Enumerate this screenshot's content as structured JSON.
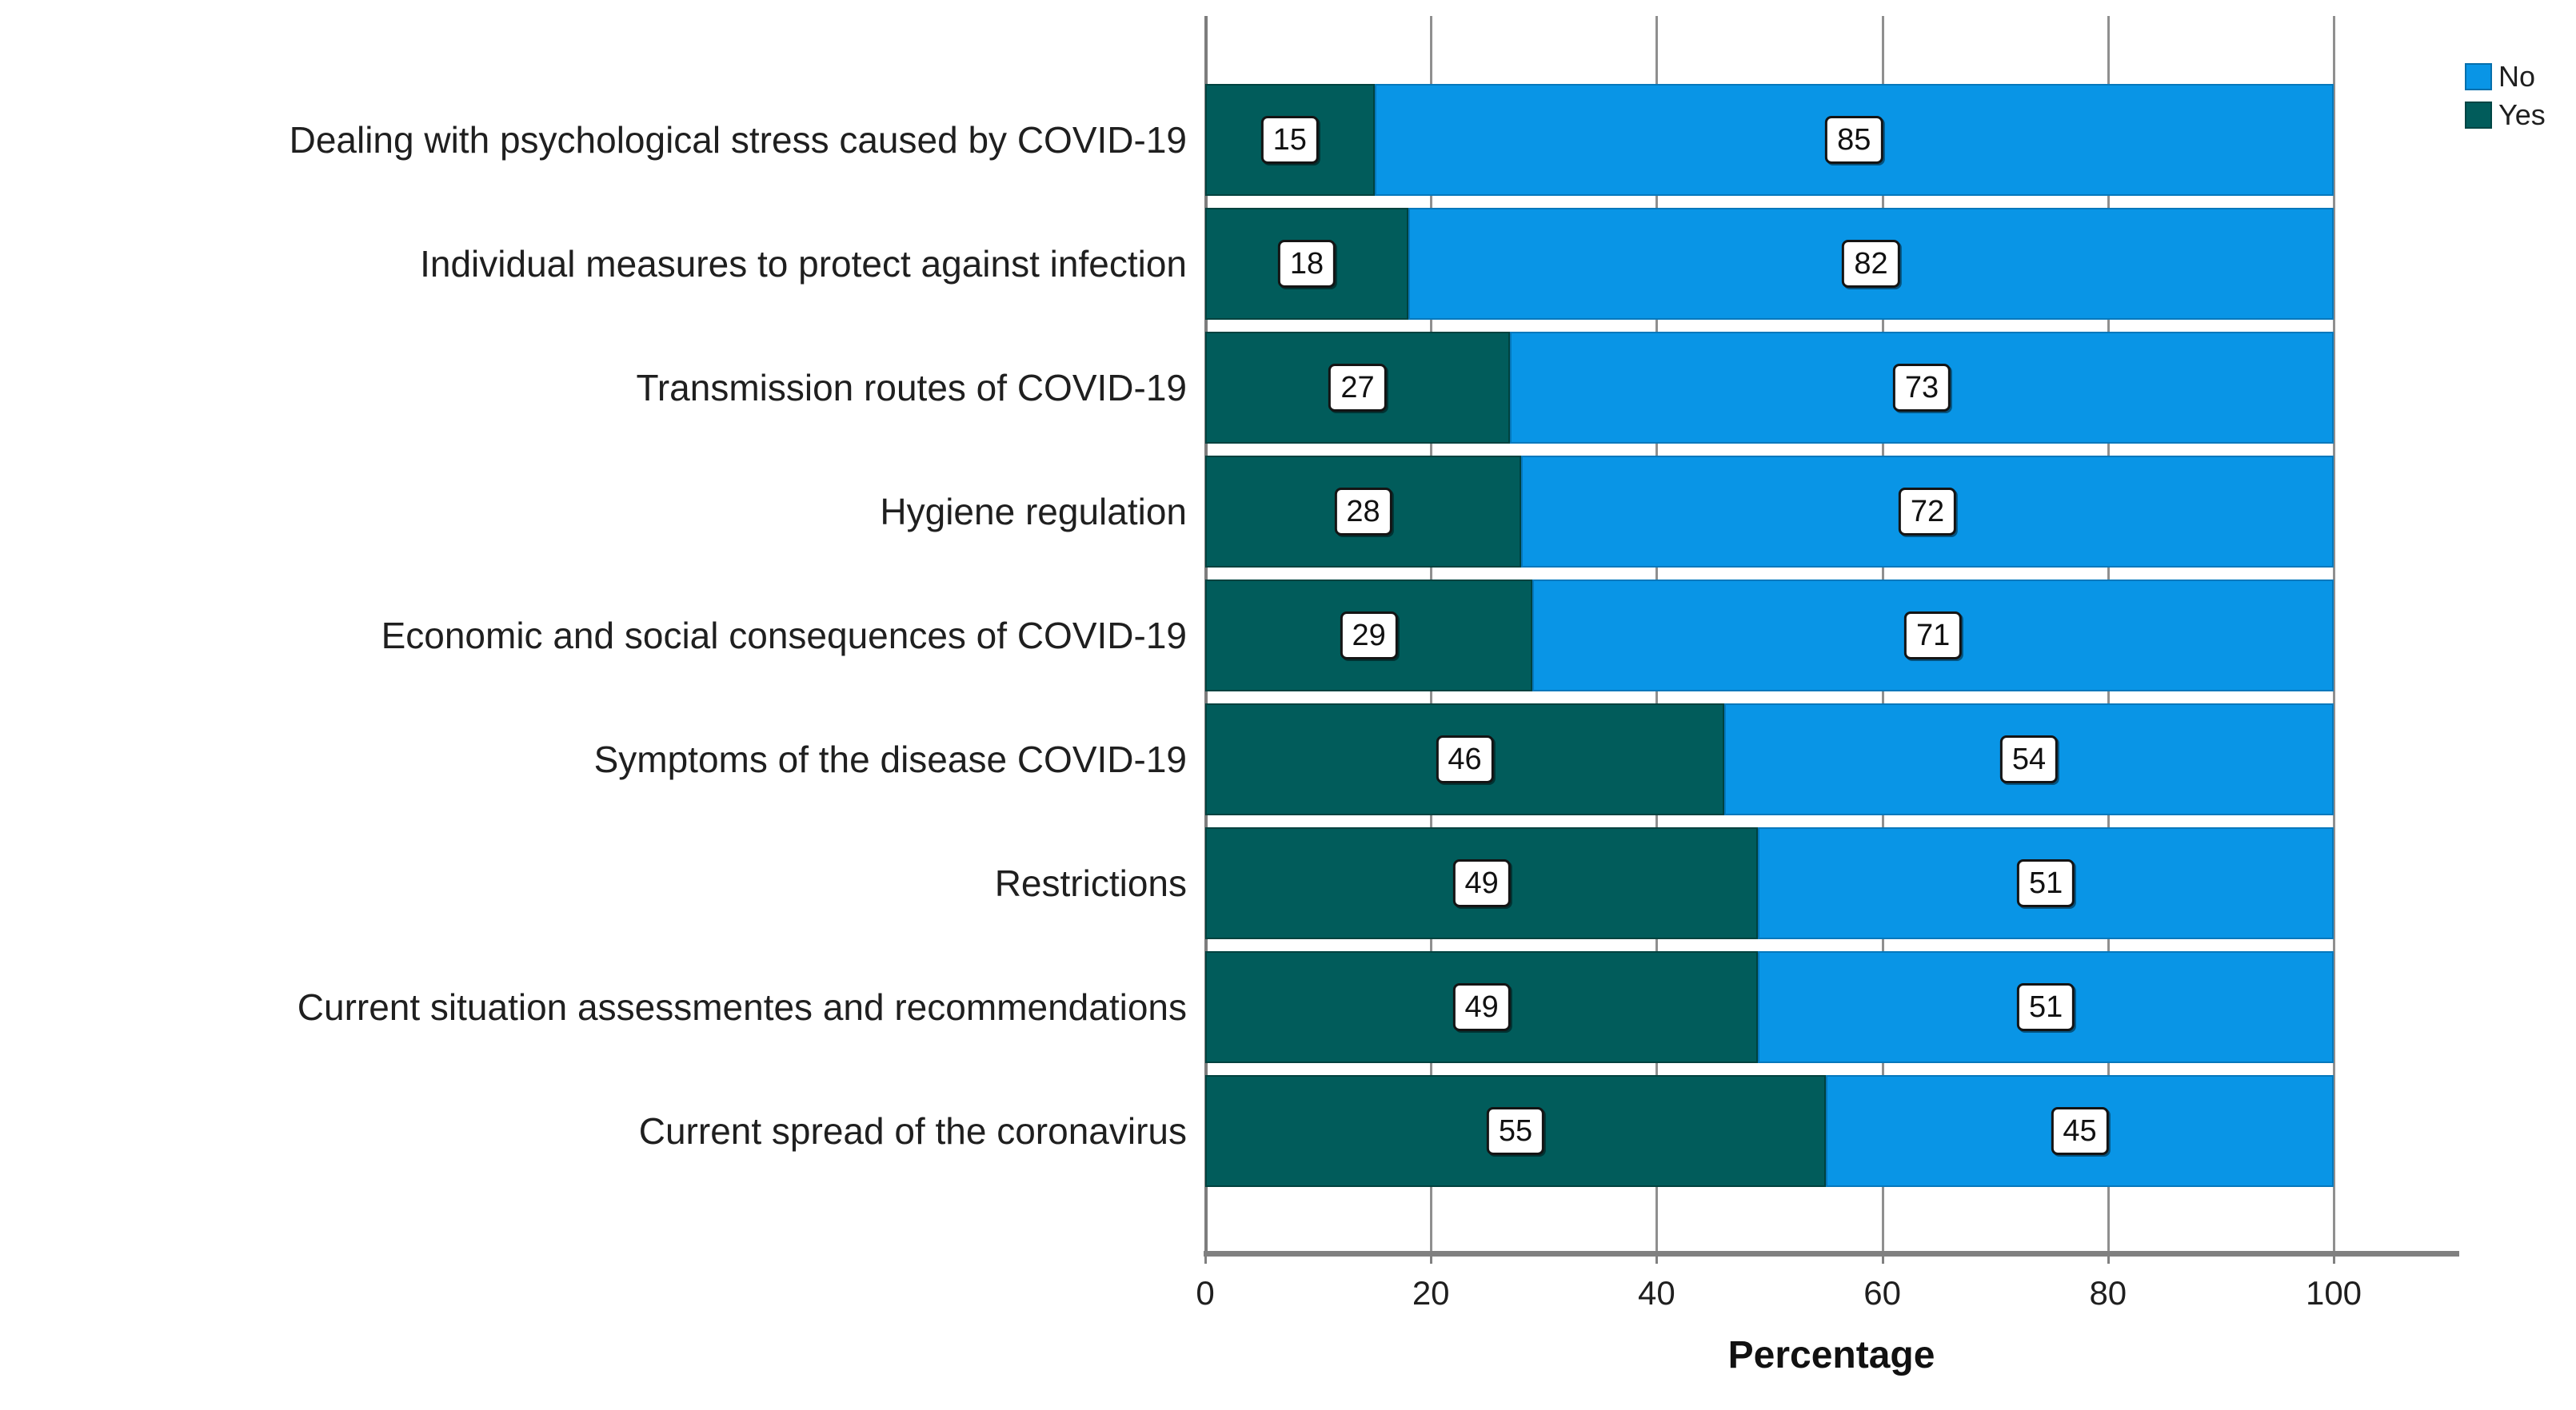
{
  "chart_data": {
    "type": "bar",
    "orientation": "horizontal",
    "stacked": true,
    "title": "",
    "xlabel": "Percentage",
    "ylabel": "",
    "xlim": [
      0,
      111
    ],
    "x_ticks": [
      0,
      20,
      40,
      60,
      80,
      100
    ],
    "grid": true,
    "categories": [
      "Dealing with psychological stress caused by COVID-19",
      "Individual measures to protect against infection",
      "Transmission routes of COVID-19",
      "Hygiene regulation",
      "Economic and social consequences of COVID-19",
      "Symptoms of the disease COVID-19",
      "Restrictions",
      "Current situation assessmentes and recommendations",
      "Current spread of the coronavirus"
    ],
    "series": [
      {
        "name": "Yes",
        "color": "#015c5b",
        "values": [
          15,
          18,
          27,
          28,
          29,
          46,
          49,
          49,
          55
        ]
      },
      {
        "name": "No",
        "color": "#0995e6",
        "values": [
          85,
          82,
          73,
          72,
          71,
          54,
          51,
          51,
          45
        ]
      }
    ],
    "legend": {
      "position": "top-right",
      "entries": [
        {
          "label": "No",
          "color": "#0995e6"
        },
        {
          "label": "Yes",
          "color": "#015c5b"
        }
      ]
    }
  },
  "colors": {
    "no_fill": "#0995e6",
    "yes_fill": "#015c5b",
    "axis_gray": "#808080",
    "grid_gray": "#8f8f8f",
    "text": "#1f1f1f",
    "background": "#ffffff"
  }
}
